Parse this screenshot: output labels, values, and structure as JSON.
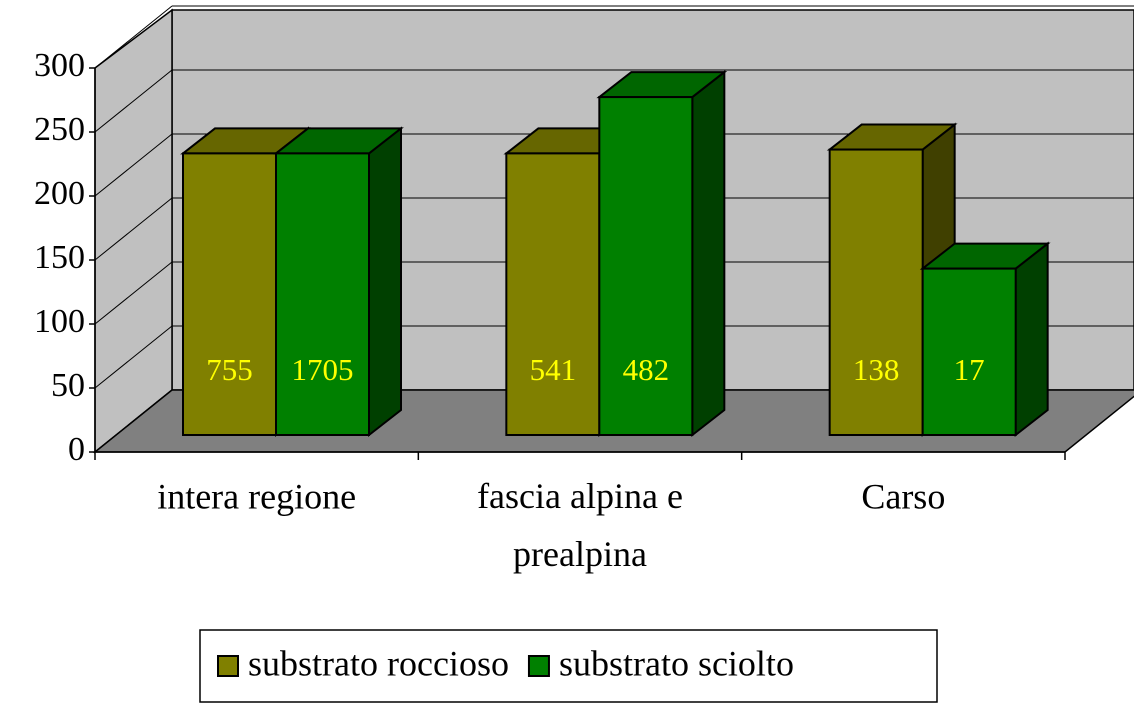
{
  "chart_data": {
    "type": "bar3d",
    "categories": [
      "intera regione",
      "fascia alpina e prealpina",
      "Carso"
    ],
    "series": [
      {
        "name": "substrato roccioso",
        "color": "#808000",
        "values": [
          220,
          220,
          223
        ],
        "counts": [
          755,
          541,
          138
        ]
      },
      {
        "name": "substrato sciolto",
        "color": "#008000",
        "values": [
          220,
          264,
          130
        ],
        "counts": [
          1705,
          482,
          17
        ]
      }
    ],
    "ylim": [
      0,
      300
    ],
    "yticks": [
      0,
      50,
      100,
      150,
      200,
      250,
      300
    ],
    "grid": true,
    "legend": "bottom"
  }
}
